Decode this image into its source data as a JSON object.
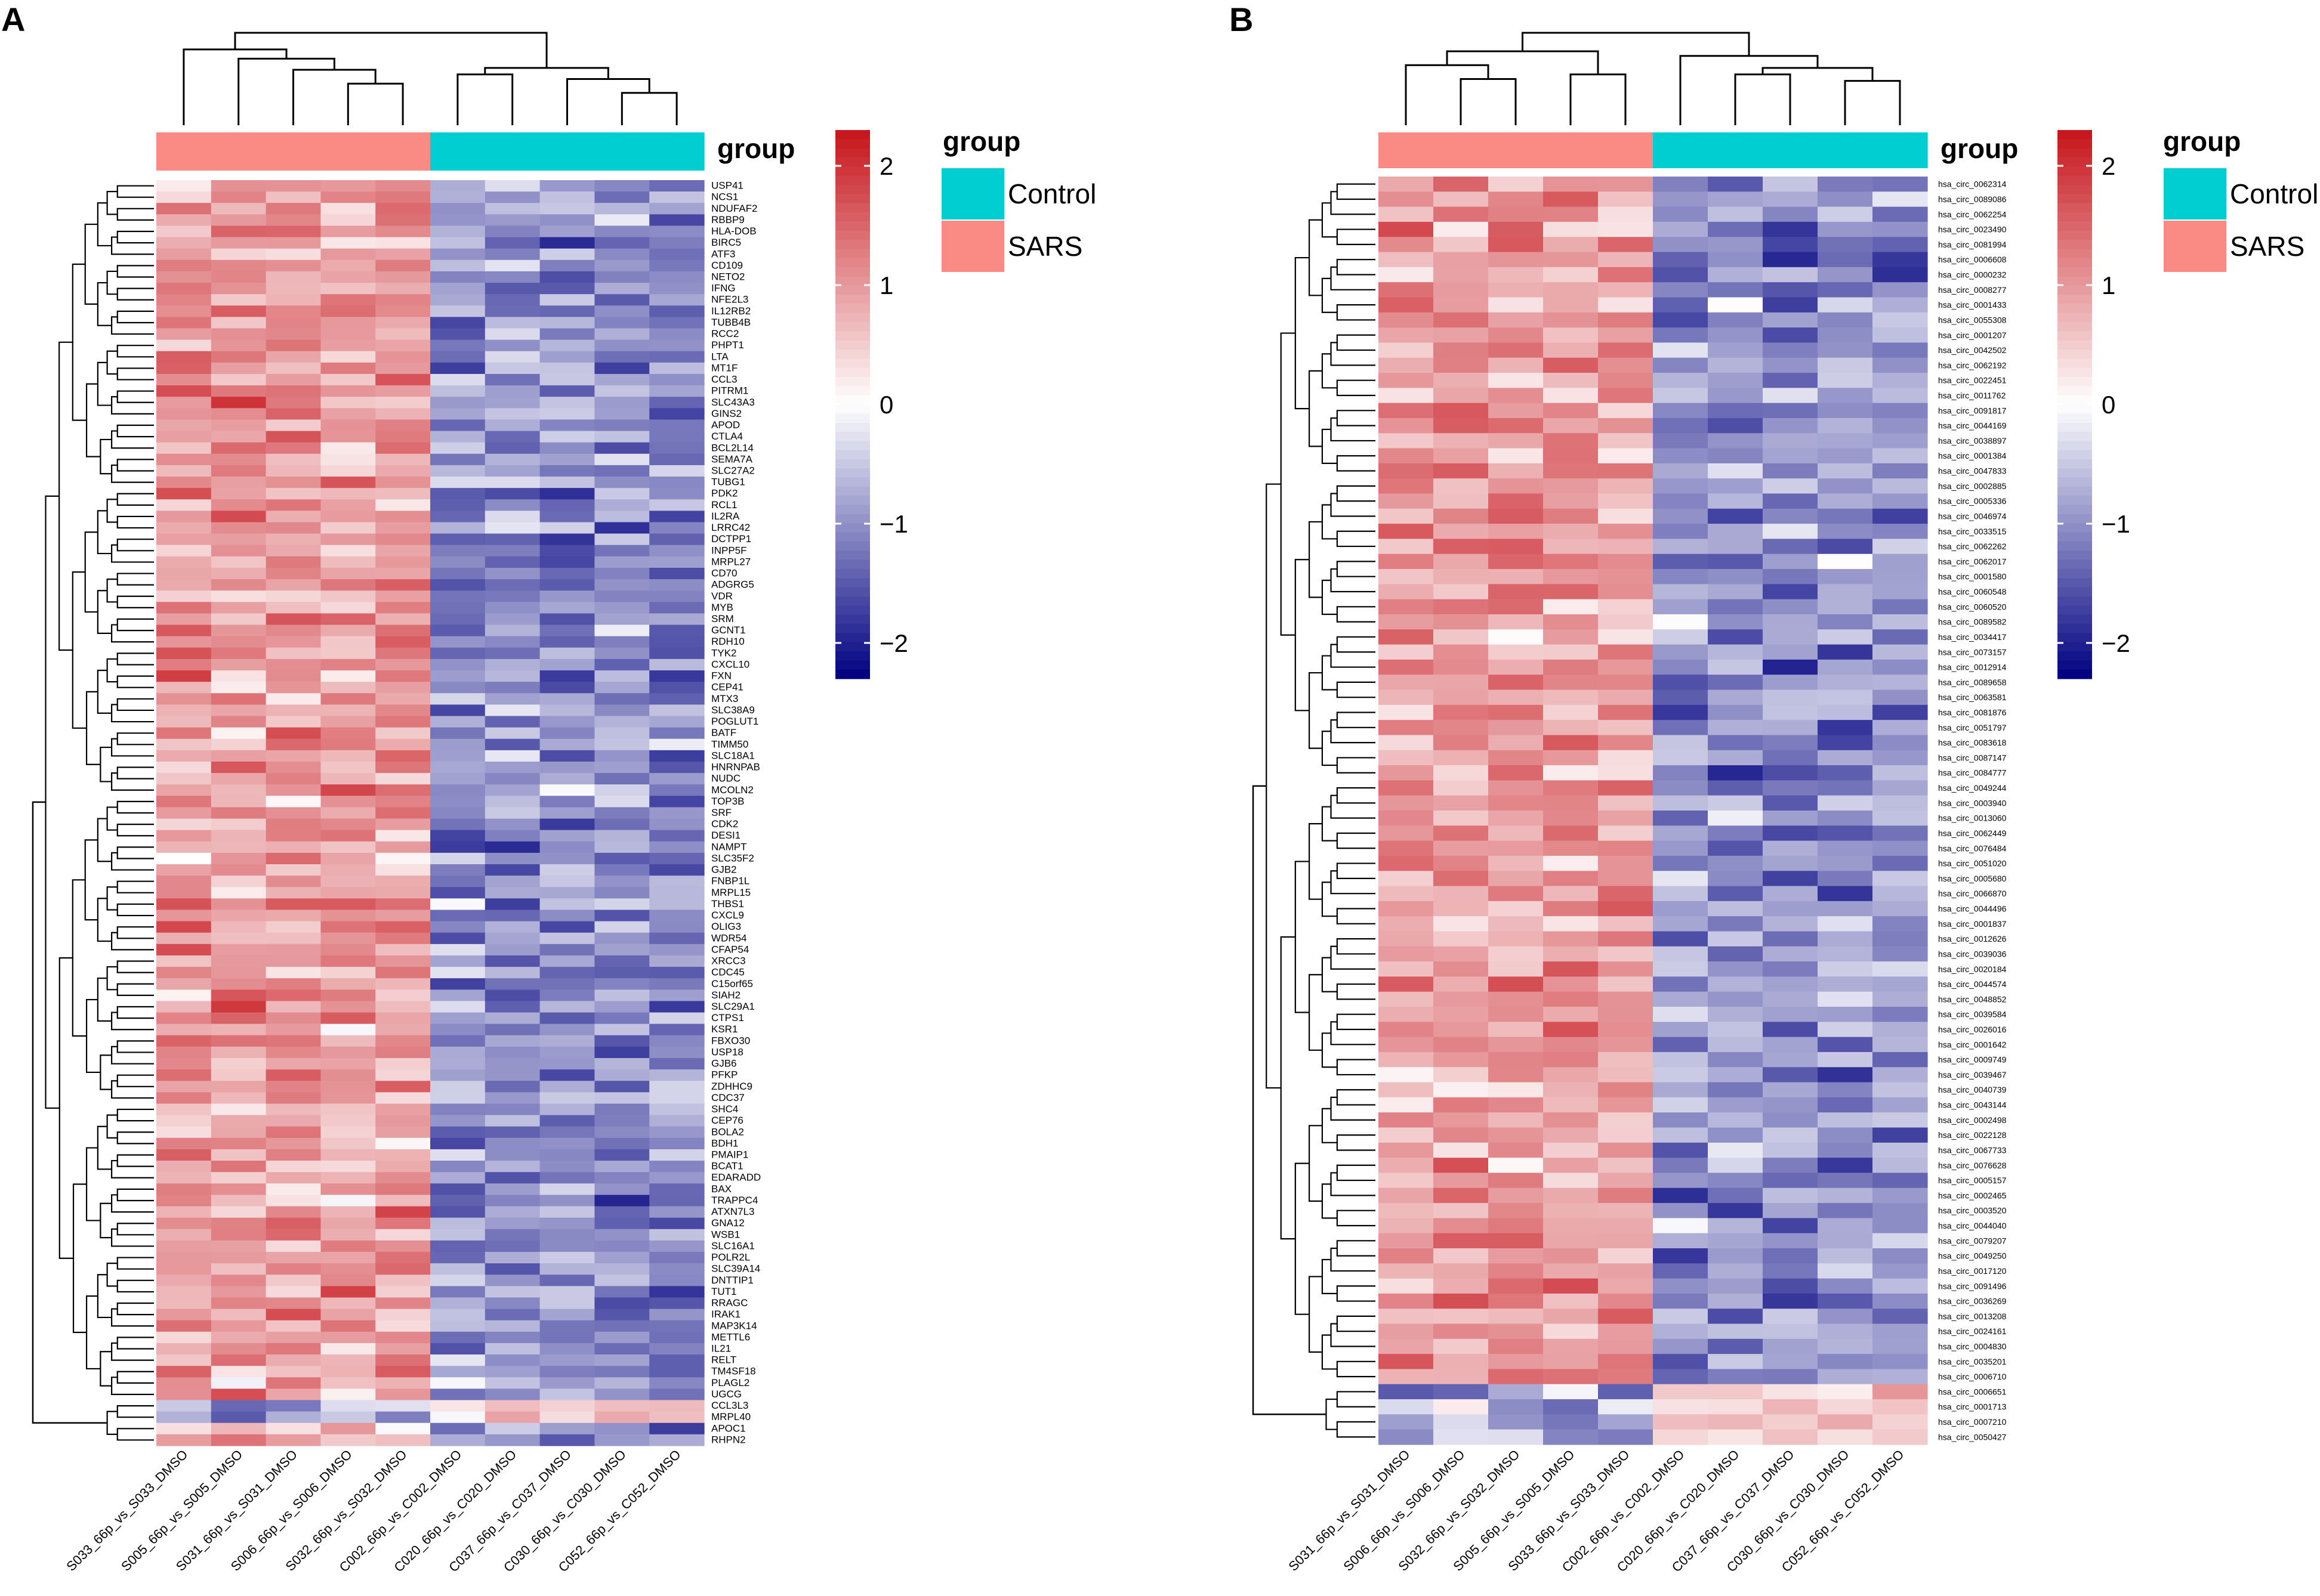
{
  "colors": {
    "low": "#000080",
    "mid": "#ffffff",
    "high": "#c6141b",
    "control": "#00ced1",
    "sars": "#fa8b84"
  },
  "chart_data": [
    {
      "type": "heatmap",
      "panel": "A",
      "annotation_label": "group",
      "legend": {
        "title": "group",
        "items": [
          {
            "label": "Control",
            "color": "#00ced1"
          },
          {
            "label": "SARS",
            "color": "#fa8b84"
          }
        ]
      },
      "colorscale": {
        "ticks": [
          {
            "value": 2,
            "label": "2"
          },
          {
            "value": 1,
            "label": "1"
          },
          {
            "value": 0,
            "label": "0"
          },
          {
            "value": -1,
            "label": "−1"
          },
          {
            "value": -2,
            "label": "−2"
          }
        ],
        "range": [
          -2.3,
          2.3
        ]
      },
      "columns": [
        "S033_66p_vs_S033_DMSO",
        "S005_66p_vs_S005_DMSO",
        "S031_66p_vs_S031_DMSO",
        "S006_66p_vs_S006_DMSO",
        "S032_66p_vs_S032_DMSO",
        "C002_66p_vs_C002_DMSO",
        "C020_66p_vs_C020_DMSO",
        "C037_66p_vs_C037_DMSO",
        "C030_66p_vs_C030_DMSO",
        "C052_66p_vs_C052_DMSO"
      ],
      "column_groups": [
        "SARS",
        "SARS",
        "SARS",
        "SARS",
        "SARS",
        "Control",
        "Control",
        "Control",
        "Control",
        "Control"
      ],
      "rows": [
        "USP41",
        "NCS1",
        "NDUFAF2",
        "RBBP9",
        "HLA-DOB",
        "BIRC5",
        "ATF3",
        "CD109",
        "NETO2",
        "IFNG",
        "NFE2L3",
        "IL12RB2",
        "TUBB4B",
        "RCC2",
        "PHPT1",
        "LTA",
        "MT1F",
        "CCL3",
        "PITRM1",
        "SLC43A3",
        "GINS2",
        "APOD",
        "CTLA4",
        "BCL2L14",
        "SEMA7A",
        "SLC27A2",
        "TUBG1",
        "PDK2",
        "RCL1",
        "IL2RA",
        "LRRC42",
        "DCTPP1",
        "INPP5F",
        "MRPL27",
        "CD70",
        "ADGRG5",
        "VDR",
        "MYB",
        "SRM",
        "GCNT1",
        "RDH10",
        "TYK2",
        "CXCL10",
        "FXN",
        "CEP41",
        "MTX3",
        "SLC38A9",
        "POGLUT1",
        "BATF",
        "TIMM50",
        "SLC18A1",
        "HNRNPAB",
        "NUDC",
        "MCOLN2",
        "TOP3B",
        "SRF",
        "CDK2",
        "DESI1",
        "NAMPT",
        "SLC35F2",
        "GJB2",
        "FNBP1L",
        "MRPL15",
        "THBS1",
        "CXCL9",
        "OLIG3",
        "WDR54",
        "CFAP54",
        "XRCC3",
        "CDC45",
        "C15orf65",
        "SIAH2",
        "SLC29A1",
        "CTPS1",
        "KSR1",
        "FBXO30",
        "USP18",
        "GJB6",
        "PFKP",
        "ZDHHC9",
        "CDC37",
        "SHC4",
        "CEP76",
        "BOLA2",
        "BDH1",
        "PMAIP1",
        "BCAT1",
        "EDARADD",
        "BAX",
        "TRAPPC4",
        "ATXN7L3",
        "GNA12",
        "WSB1",
        "SLC16A1",
        "POLR2L",
        "SLC39A14",
        "DNTTIP1",
        "TUT1",
        "RRAGC",
        "IRAK1",
        "MAP3K14",
        "METTL6",
        "IL21",
        "RELT",
        "TM4SF18",
        "PLAGL2",
        "UGCG",
        "CCL3L3",
        "MRPL40",
        "APOC1",
        "RHPN2"
      ]
    },
    {
      "type": "heatmap",
      "panel": "B",
      "annotation_label": "group",
      "legend": {
        "title": "group",
        "items": [
          {
            "label": "Control",
            "color": "#00ced1"
          },
          {
            "label": "SARS",
            "color": "#fa8b84"
          }
        ]
      },
      "colorscale": {
        "ticks": [
          {
            "value": 2,
            "label": "2"
          },
          {
            "value": 1,
            "label": "1"
          },
          {
            "value": 0,
            "label": "0"
          },
          {
            "value": -1,
            "label": "−1"
          },
          {
            "value": -2,
            "label": "−2"
          }
        ],
        "range": [
          -2.3,
          2.3
        ]
      },
      "columns": [
        "S031_66p_vs_S031_DMSO",
        "S006_66p_vs_S006_DMSO",
        "S032_66p_vs_S032_DMSO",
        "S005_66p_vs_S005_DMSO",
        "S033_66p_vs_S033_DMSO",
        "C002_66p_vs_C002_DMSO",
        "C020_66p_vs_C020_DMSO",
        "C037_66p_vs_C037_DMSO",
        "C030_66p_vs_C030_DMSO",
        "C052_66p_vs_C052_DMSO"
      ],
      "column_groups": [
        "SARS",
        "SARS",
        "SARS",
        "SARS",
        "SARS",
        "Control",
        "Control",
        "Control",
        "Control",
        "Control"
      ],
      "rows": [
        "hsa_circ_0062314",
        "hsa_circ_0089086",
        "hsa_circ_0062254",
        "hsa_circ_0023490",
        "hsa_circ_0081994",
        "hsa_circ_0006608",
        "hsa_circ_0000232",
        "hsa_circ_0008277",
        "hsa_circ_0001433",
        "hsa_circ_0055308",
        "hsa_circ_0001207",
        "hsa_circ_0042502",
        "hsa_circ_0062192",
        "hsa_circ_0022451",
        "hsa_circ_0011762",
        "hsa_circ_0091817",
        "hsa_circ_0044169",
        "hsa_circ_0038897",
        "hsa_circ_0001384",
        "hsa_circ_0047833",
        "hsa_circ_0002885",
        "hsa_circ_0005336",
        "hsa_circ_0046974",
        "hsa_circ_0033515",
        "hsa_circ_0062262",
        "hsa_circ_0062017",
        "hsa_circ_0001580",
        "hsa_circ_0060548",
        "hsa_circ_0060520",
        "hsa_circ_0089582",
        "hsa_circ_0034417",
        "hsa_circ_0073157",
        "hsa_circ_0012914",
        "hsa_circ_0089658",
        "hsa_circ_0063581",
        "hsa_circ_0081876",
        "hsa_circ_0051797",
        "hsa_circ_0083618",
        "hsa_circ_0087147",
        "hsa_circ_0084777",
        "hsa_circ_0049244",
        "hsa_circ_0003940",
        "hsa_circ_0013060",
        "hsa_circ_0062449",
        "hsa_circ_0076484",
        "hsa_circ_0051020",
        "hsa_circ_0005680",
        "hsa_circ_0066870",
        "hsa_circ_0044496",
        "hsa_circ_0001837",
        "hsa_circ_0012626",
        "hsa_circ_0039036",
        "hsa_circ_0020184",
        "hsa_circ_0044574",
        "hsa_circ_0048852",
        "hsa_circ_0039584",
        "hsa_circ_0026016",
        "hsa_circ_0001642",
        "hsa_circ_0009749",
        "hsa_circ_0039467",
        "hsa_circ_0040739",
        "hsa_circ_0043144",
        "hsa_circ_0002498",
        "hsa_circ_0022128",
        "hsa_circ_0067733",
        "hsa_circ_0076628",
        "hsa_circ_0005157",
        "hsa_circ_0002465",
        "hsa_circ_0003520",
        "hsa_circ_0044040",
        "hsa_circ_0079207",
        "hsa_circ_0049250",
        "hsa_circ_0017120",
        "hsa_circ_0091496",
        "hsa_circ_0036269",
        "hsa_circ_0013208",
        "hsa_circ_0024161",
        "hsa_circ_0004830",
        "hsa_circ_0035201",
        "hsa_circ_0006710",
        "hsa_circ_0006651",
        "hsa_circ_0001713",
        "hsa_circ_0007210",
        "hsa_circ_0050427"
      ]
    }
  ]
}
